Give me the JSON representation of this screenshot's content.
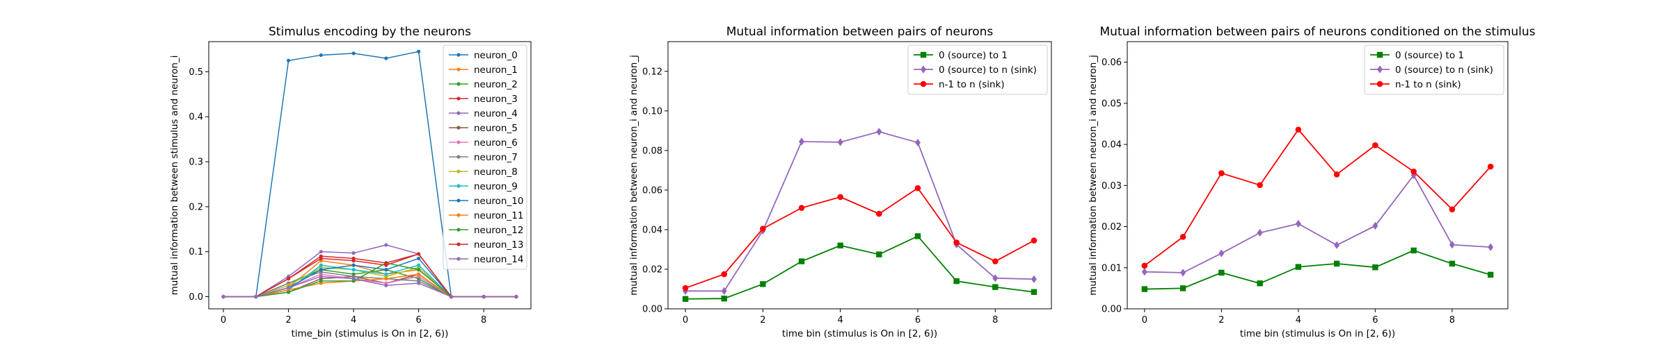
{
  "chart_data": [
    {
      "type": "line",
      "title": "Stimulus encoding by the neurons",
      "xlabel": "time_bin (stimulus is On in [2, 6))",
      "ylabel": "mutual information between stimulus and neuron_i",
      "xlim": [
        -0.45,
        9.45
      ],
      "ylim": [
        -0.027,
        0.567
      ],
      "xticks": [
        0,
        2,
        4,
        6,
        8
      ],
      "yticks": [
        0.0,
        0.1,
        0.2,
        0.3,
        0.4,
        0.5
      ],
      "ytick_labels": [
        "0.0",
        "0.1",
        "0.2",
        "0.3",
        "0.4",
        "0.5"
      ],
      "legend_loc": "upper right",
      "x": [
        0,
        1,
        2,
        3,
        4,
        5,
        6,
        7,
        8,
        9
      ],
      "series": [
        {
          "name": "neuron_0",
          "color": "#1f77b4",
          "marker": "circle",
          "values": [
            0,
            0,
            0.525,
            0.537,
            0.541,
            0.53,
            0.545,
            0,
            0,
            0
          ]
        },
        {
          "name": "neuron_1",
          "color": "#ff7f0e",
          "marker": "circle",
          "values": [
            0,
            0,
            0.02,
            0.08,
            0.07,
            0.05,
            0.06,
            0,
            0,
            0
          ]
        },
        {
          "name": "neuron_2",
          "color": "#2ca02c",
          "marker": "circle",
          "values": [
            0,
            0,
            0.03,
            0.06,
            0.05,
            0.06,
            0.04,
            0,
            0,
            0
          ]
        },
        {
          "name": "neuron_3",
          "color": "#d62728",
          "marker": "circle",
          "values": [
            0,
            0,
            0.04,
            0.085,
            0.08,
            0.07,
            0.095,
            0,
            0,
            0
          ]
        },
        {
          "name": "neuron_4",
          "color": "#9467bd",
          "marker": "circle",
          "values": [
            0,
            0,
            0.045,
            0.1,
            0.097,
            0.115,
            0.095,
            0,
            0,
            0
          ]
        },
        {
          "name": "neuron_5",
          "color": "#8c564b",
          "marker": "circle",
          "values": [
            0,
            0,
            0.01,
            0.04,
            0.045,
            0.03,
            0.05,
            0,
            0,
            0
          ]
        },
        {
          "name": "neuron_6",
          "color": "#e377c2",
          "marker": "circle",
          "values": [
            0,
            0,
            0.02,
            0.05,
            0.04,
            0.03,
            0.045,
            0,
            0,
            0
          ]
        },
        {
          "name": "neuron_7",
          "color": "#7f7f7f",
          "marker": "circle",
          "values": [
            0,
            0,
            0.03,
            0.055,
            0.045,
            0.04,
            0.035,
            0,
            0,
            0
          ]
        },
        {
          "name": "neuron_8",
          "color": "#bcbd22",
          "marker": "circle",
          "values": [
            0,
            0,
            0.025,
            0.065,
            0.06,
            0.045,
            0.065,
            0,
            0,
            0
          ]
        },
        {
          "name": "neuron_9",
          "color": "#17becf",
          "marker": "circle",
          "values": [
            0,
            0,
            0.015,
            0.07,
            0.06,
            0.05,
            0.07,
            0,
            0,
            0
          ]
        },
        {
          "name": "neuron_10",
          "color": "#1f77b4",
          "marker": "circle",
          "values": [
            0,
            0,
            0.02,
            0.06,
            0.07,
            0.06,
            0.085,
            0,
            0,
            0
          ]
        },
        {
          "name": "neuron_11",
          "color": "#ff7f0e",
          "marker": "circle",
          "values": [
            0,
            0,
            0.015,
            0.03,
            0.035,
            0.04,
            0.05,
            0,
            0,
            0
          ]
        },
        {
          "name": "neuron_12",
          "color": "#2ca02c",
          "marker": "circle",
          "values": [
            0,
            0,
            0.01,
            0.035,
            0.035,
            0.075,
            0.06,
            0,
            0,
            0
          ]
        },
        {
          "name": "neuron_13",
          "color": "#d62728",
          "marker": "circle",
          "values": [
            0,
            0,
            0.04,
            0.09,
            0.085,
            0.075,
            0.095,
            0,
            0,
            0
          ]
        },
        {
          "name": "neuron_14",
          "color": "#9467bd",
          "marker": "circle",
          "values": [
            0,
            0,
            0.02,
            0.045,
            0.04,
            0.025,
            0.03,
            0,
            0,
            0
          ]
        }
      ]
    },
    {
      "type": "line",
      "title": "Mutual information between pairs of neurons",
      "xlabel": "time bin (stimulus is On in [2, 6))",
      "ylabel": "mutual information between neuron_i and neuron_j",
      "xlim": [
        -0.45,
        9.45
      ],
      "ylim": [
        0,
        0.135
      ],
      "xticks": [
        0,
        2,
        4,
        6,
        8
      ],
      "yticks": [
        0.0,
        0.02,
        0.04,
        0.06,
        0.08,
        0.1,
        0.12
      ],
      "ytick_labels": [
        "0.00",
        "0.02",
        "0.04",
        "0.06",
        "0.08",
        "0.10",
        "0.12"
      ],
      "legend_loc": "upper right",
      "x": [
        0,
        1,
        2,
        3,
        4,
        5,
        6,
        7,
        8,
        9
      ],
      "series": [
        {
          "name": "0 (source) to 1",
          "color": "#008000",
          "marker": "square",
          "values": [
            0.005,
            0.0052,
            0.0125,
            0.024,
            0.032,
            0.0275,
            0.0367,
            0.014,
            0.011,
            0.0085
          ]
        },
        {
          "name": "0 (source) to n (sink)",
          "color": "#9467bd",
          "marker": "diamond",
          "values": [
            0.009,
            0.009,
            0.0395,
            0.0845,
            0.0842,
            0.0895,
            0.084,
            0.0325,
            0.0155,
            0.015
          ]
        },
        {
          "name": "n-1 to n (sink)",
          "color": "#ff0000",
          "marker": "circle",
          "values": [
            0.0105,
            0.0175,
            0.0405,
            0.051,
            0.0565,
            0.048,
            0.061,
            0.0335,
            0.024,
            0.0345
          ]
        }
      ]
    },
    {
      "type": "line",
      "title": "Mutual information between pairs of neurons conditioned on the stimulus",
      "xlabel": "time bin (stimulus is On in [2, 6))",
      "ylabel": "mutual information between neuron_i and neuron_j",
      "xlim": [
        -0.45,
        9.45
      ],
      "ylim": [
        0,
        0.065
      ],
      "xticks": [
        0,
        2,
        4,
        6,
        8
      ],
      "yticks": [
        0.0,
        0.01,
        0.02,
        0.03,
        0.04,
        0.05,
        0.06
      ],
      "ytick_labels": [
        "0.00",
        "0.01",
        "0.02",
        "0.03",
        "0.04",
        "0.05",
        "0.06"
      ],
      "legend_loc": "upper right",
      "x": [
        0,
        1,
        2,
        3,
        4,
        5,
        6,
        7,
        8,
        9
      ],
      "series": [
        {
          "name": "0 (source) to 1",
          "color": "#008000",
          "marker": "square",
          "values": [
            0.0048,
            0.005,
            0.0088,
            0.0062,
            0.0102,
            0.011,
            0.0101,
            0.0142,
            0.011,
            0.0083
          ]
        },
        {
          "name": "0 (source) to n (sink)",
          "color": "#9467bd",
          "marker": "diamond",
          "values": [
            0.009,
            0.0088,
            0.0135,
            0.0185,
            0.0207,
            0.0155,
            0.0202,
            0.0325,
            0.0156,
            0.015
          ]
        },
        {
          "name": "n-1 to n (sink)",
          "color": "#ff0000",
          "marker": "circle",
          "values": [
            0.0105,
            0.0175,
            0.033,
            0.0301,
            0.0436,
            0.0327,
            0.0398,
            0.0334,
            0.0242,
            0.0346
          ]
        }
      ]
    }
  ]
}
